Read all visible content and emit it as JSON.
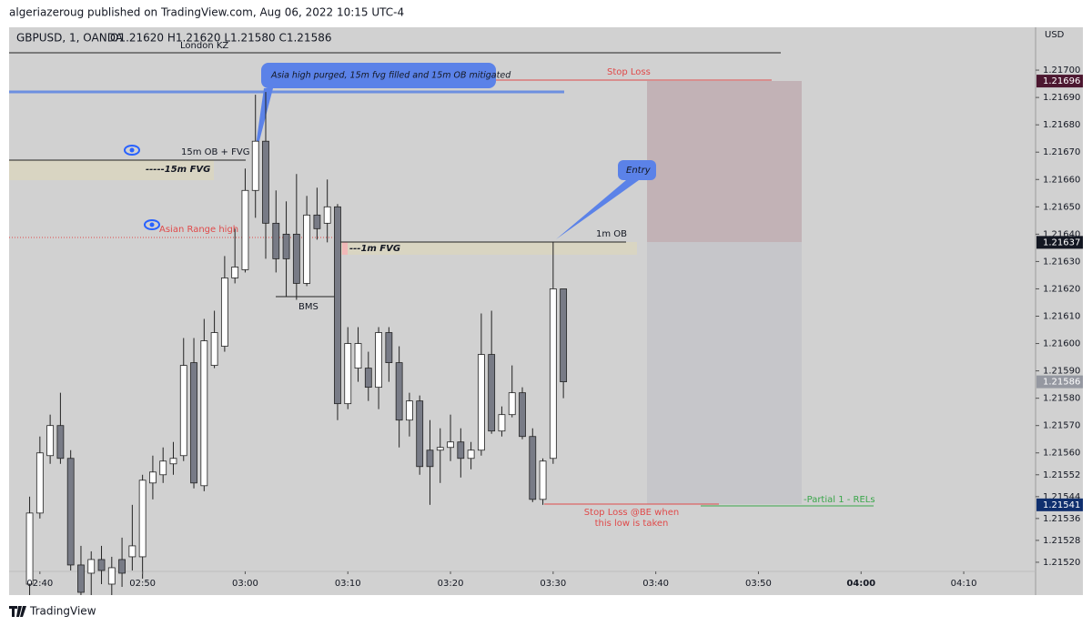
{
  "header": {
    "publisher": "algeriazeroug published on TradingView.com, Aug 06, 2022 10:15 UTC-4",
    "symbol": "GBPUSD, 1, OANDA",
    "ohlc": "O1.21620  H1.21620  L1.21580  C1.21586"
  },
  "chart_data": {
    "type": "candlestick",
    "currency": "USD",
    "x": [
      "02:39",
      "02:40",
      "02:41",
      "02:42",
      "02:43",
      "02:44",
      "02:45",
      "02:46",
      "02:47",
      "02:48",
      "02:49",
      "02:50",
      "02:51",
      "02:52",
      "02:53",
      "02:54",
      "02:55",
      "02:56",
      "02:57",
      "02:58",
      "02:59",
      "03:00",
      "03:01",
      "03:02",
      "03:03",
      "03:04",
      "03:05",
      "03:06",
      "03:07",
      "03:08",
      "03:09",
      "03:10",
      "03:11",
      "03:12",
      "03:13",
      "03:14",
      "03:15",
      "03:16",
      "03:17",
      "03:18",
      "03:19",
      "03:20",
      "03:21",
      "03:22",
      "03:23",
      "03:24",
      "03:25",
      "03:26",
      "03:27",
      "03:28",
      "03:29",
      "03:30",
      "03:31"
    ],
    "open": [
      1.21512,
      1.21538,
      1.21559,
      1.2157,
      1.21558,
      1.21519,
      1.21516,
      1.21521,
      1.21512,
      1.21521,
      1.21522,
      1.21522,
      1.21549,
      1.21552,
      1.21556,
      1.21559,
      1.21593,
      1.21548,
      1.21592,
      1.21599,
      1.21624,
      1.21627,
      1.21656,
      1.21674,
      1.21644,
      1.2164,
      1.2164,
      1.21622,
      1.21647,
      1.21644,
      1.2165,
      1.21578,
      1.21591,
      1.21591,
      1.21584,
      1.21604,
      1.21593,
      1.21572,
      1.21579,
      1.21561,
      1.21561,
      1.21562,
      1.21564,
      1.21558,
      1.21561,
      1.21596,
      1.21568,
      1.21574,
      1.21582,
      1.21566,
      1.21543,
      1.21558,
      1.2162
    ],
    "high": [
      1.21544,
      1.21566,
      1.21574,
      1.21582,
      1.21561,
      1.21526,
      1.21524,
      1.21526,
      1.21522,
      1.21529,
      1.21541,
      1.21552,
      1.21559,
      1.21562,
      1.21564,
      1.21602,
      1.21602,
      1.21609,
      1.21612,
      1.21632,
      1.21642,
      1.21664,
      1.21691,
      1.21692,
      1.21656,
      1.21652,
      1.21662,
      1.21654,
      1.21657,
      1.2166,
      1.21651,
      1.21606,
      1.21606,
      1.21597,
      1.21606,
      1.21606,
      1.21599,
      1.21582,
      1.21581,
      1.21572,
      1.21569,
      1.21574,
      1.21569,
      1.21564,
      1.21611,
      1.21612,
      1.21577,
      1.21592,
      1.21584,
      1.21569,
      1.21558,
      1.21637,
      1.2162
    ],
    "low": [
      1.21508,
      1.21536,
      1.21556,
      1.21556,
      1.21517,
      1.21508,
      1.21508,
      1.21512,
      1.21508,
      1.21511,
      1.21517,
      1.21514,
      1.21543,
      1.21549,
      1.21552,
      1.21557,
      1.21547,
      1.21546,
      1.21591,
      1.21597,
      1.21622,
      1.21626,
      1.21646,
      1.21631,
      1.21626,
      1.21617,
      1.21616,
      1.21621,
      1.21638,
      1.21637,
      1.21572,
      1.21576,
      1.21586,
      1.21579,
      1.21576,
      1.21586,
      1.21562,
      1.21566,
      1.21552,
      1.21541,
      1.21549,
      1.21557,
      1.21551,
      1.21554,
      1.21559,
      1.21567,
      1.21566,
      1.21573,
      1.21565,
      1.21542,
      1.21541,
      1.21556,
      1.2158
    ],
    "close": [
      1.21538,
      1.2156,
      1.2157,
      1.21558,
      1.21519,
      1.21509,
      1.21521,
      1.21517,
      1.21518,
      1.21516,
      1.21526,
      1.2155,
      1.21553,
      1.21557,
      1.21558,
      1.21592,
      1.21549,
      1.21601,
      1.21604,
      1.21624,
      1.21628,
      1.21656,
      1.21674,
      1.21644,
      1.21631,
      1.21631,
      1.21622,
      1.21647,
      1.21642,
      1.2165,
      1.21578,
      1.216,
      1.216,
      1.21584,
      1.21604,
      1.21593,
      1.21572,
      1.21579,
      1.21555,
      1.21555,
      1.21562,
      1.21564,
      1.21558,
      1.21561,
      1.21596,
      1.21568,
      1.21574,
      1.21582,
      1.21566,
      1.21543,
      1.21557,
      1.2162,
      1.21586
    ],
    "up_color": "#ffffff",
    "down_color": "#787b86",
    "xlim": [
      "02:37",
      "04:17"
    ],
    "xticks": [
      "02:40",
      "02:50",
      "03:00",
      "03:10",
      "03:20",
      "03:30",
      "03:40",
      "03:50",
      "04:00",
      "04:10"
    ],
    "ylim": [
      1.21508,
      1.21715
    ],
    "yticks": [
      {
        "value": 1.217,
        "label": "1.21700"
      },
      {
        "value": 1.2169,
        "label": "1.21690"
      },
      {
        "value": 1.2168,
        "label": "1.21680"
      },
      {
        "value": 1.2167,
        "label": "1.21670"
      },
      {
        "value": 1.2166,
        "label": "1.21660"
      },
      {
        "value": 1.2165,
        "label": "1.21650"
      },
      {
        "value": 1.2164,
        "label": "1.21640"
      },
      {
        "value": 1.2163,
        "label": "1.21630"
      },
      {
        "value": 1.2162,
        "label": "1.21620"
      },
      {
        "value": 1.2161,
        "label": "1.21610"
      },
      {
        "value": 1.216,
        "label": "1.21600"
      },
      {
        "value": 1.2159,
        "label": "1.21590"
      },
      {
        "value": 1.2158,
        "label": "1.21580"
      },
      {
        "value": 1.2157,
        "label": "1.21570"
      },
      {
        "value": 1.2156,
        "label": "1.21560"
      },
      {
        "value": 1.21552,
        "label": "1.21552"
      },
      {
        "value": 1.21544,
        "label": "1.21544"
      },
      {
        "value": 1.21536,
        "label": "1.21536"
      },
      {
        "value": 1.21528,
        "label": "1.21528"
      },
      {
        "value": 1.2152,
        "label": "1.21520"
      }
    ],
    "grid": false,
    "price_markers": [
      {
        "value": 1.21696,
        "color": "#4c1730"
      },
      {
        "value": 1.21637,
        "color": "#131722"
      },
      {
        "value": 1.21586,
        "color": "#9598a1"
      },
      {
        "value": 1.21541,
        "color": "#0f2f6e"
      }
    ]
  },
  "annotations": {
    "london_kz": "London KZ",
    "asia_note": "Asia high purged, 15m fvg filled and 15m OB mitigated",
    "stop_loss": "Stop Loss",
    "ob_15m": "15m OB + FVG",
    "fvg_15m": "-----15m FVG",
    "asian_range_high": "Asian Range high",
    "entry": "Entry",
    "ob_1m": "1m OB",
    "fvg_1m": "---1m FVG",
    "bms": "BMS",
    "stop_be": [
      "Stop Loss @BE when",
      "this low is taken"
    ],
    "partial": "-Partial 1 - RELs"
  },
  "footer": "TradingView"
}
